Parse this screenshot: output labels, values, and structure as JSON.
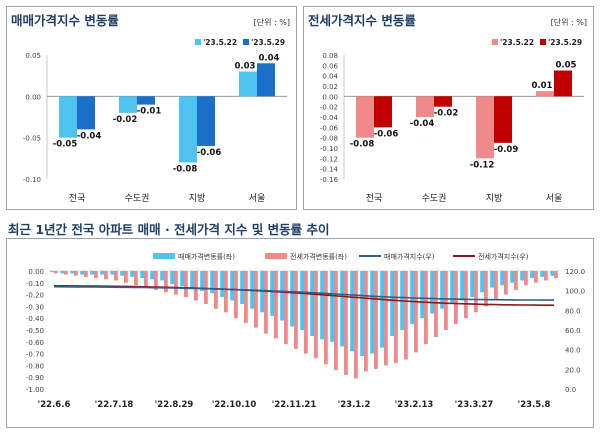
{
  "top_left": {
    "title": "매매가격지수 변동률",
    "unit": "[단위 : %]"
  },
  "top_right": {
    "title": "전세가격지수 변동률",
    "unit": "[단위 : %]"
  },
  "bottom": {
    "title": "최근 1년간 전국 아파트 매매 · 전세가격 지수 및 변동률 추이"
  },
  "colors": {
    "sale_prev": "#4fc3f0",
    "sale_curr": "#1a6fc9",
    "jeonse_prev": "#f08a8a",
    "jeonse_curr": "#c00000",
    "sale_index_line": "#2f5f8a",
    "jeonse_index_line": "#8b1a1a",
    "title": "#1f3f66"
  },
  "chart_data": [
    {
      "type": "bar",
      "name": "sale_rate",
      "categories": [
        "전국",
        "수도권",
        "지방",
        "서울"
      ],
      "series": [
        {
          "name": "'23.5.22",
          "values": [
            -0.05,
            -0.02,
            -0.08,
            0.03
          ],
          "labels": [
            "-0.05",
            "-0.02",
            "-0.08",
            "0.03"
          ]
        },
        {
          "name": "'23.5.29",
          "values": [
            -0.04,
            -0.01,
            -0.06,
            0.04
          ],
          "labels": [
            "-0.04",
            "-0.01",
            "-0.06",
            "0.04"
          ]
        }
      ],
      "ylim": [
        -0.1,
        0.05
      ],
      "yticks": [
        "0.05",
        "0.00",
        "-0.05",
        "-0.10"
      ],
      "ytick_values": [
        0.05,
        0.0,
        -0.05,
        -0.1
      ],
      "legend": "top-right"
    },
    {
      "type": "bar",
      "name": "jeonse_rate",
      "categories": [
        "전국",
        "수도권",
        "지방",
        "서울"
      ],
      "series": [
        {
          "name": "'23.5.22",
          "values": [
            -0.08,
            -0.04,
            -0.12,
            0.01
          ],
          "labels": [
            "-0.08",
            "-0.04",
            "-0.12",
            "0.01"
          ]
        },
        {
          "name": "'23.5.29",
          "values": [
            -0.06,
            -0.02,
            -0.09,
            0.05
          ],
          "labels": [
            "-0.06",
            "-0.02",
            "-0.09",
            "0.05"
          ]
        }
      ],
      "ylim": [
        -0.16,
        0.08
      ],
      "yticks": [
        "0.08",
        "0.06",
        "0.04",
        "0.02",
        "0.00",
        "-0.02",
        "-0.04",
        "-0.06",
        "-0.08",
        "-0.10",
        "-0.12",
        "-0.14",
        "-0.16"
      ],
      "ytick_values": [
        0.08,
        0.06,
        0.04,
        0.02,
        0.0,
        -0.02,
        -0.04,
        -0.06,
        -0.08,
        -0.1,
        -0.12,
        -0.14,
        -0.16
      ],
      "legend": "top-right"
    },
    {
      "type": "bar+line",
      "name": "yearly_trend",
      "legend_labels": [
        "매매가격변동률(좌)",
        "전세가격변동률(좌)",
        "매매가격지수(우)",
        "전세가격지수(우)"
      ],
      "xticks": [
        "'22.6.6",
        "'22.7.18",
        "'22.8.29",
        "'22.10.10",
        "'22.11.21",
        "'23.1.2",
        "'23.2.13",
        "'23.3.27",
        "'23.5.8"
      ],
      "xtick_weeks": [
        0,
        6,
        12,
        18,
        24,
        30,
        36,
        42,
        48
      ],
      "y_left_ticks": [
        "0.00",
        "-0.10",
        "-0.20",
        "-0.30",
        "-0.40",
        "-0.50",
        "-0.60",
        "-0.70",
        "-0.80",
        "-0.90",
        "-1.00"
      ],
      "y_left_values": [
        0.0,
        -0.1,
        -0.2,
        -0.3,
        -0.4,
        -0.5,
        -0.6,
        -0.7,
        -0.8,
        -0.9,
        -1.0
      ],
      "y_right_ticks": [
        "120.0",
        "100.0",
        "80.0",
        "60.0",
        "40.0",
        "20.0",
        "0.0"
      ],
      "y_right_values": [
        120,
        100,
        80,
        60,
        40,
        20,
        0
      ],
      "y_left_lim": [
        -1.0,
        0.0
      ],
      "y_right_lim": [
        0,
        120
      ],
      "sale_rate": [
        -0.01,
        -0.02,
        -0.02,
        -0.03,
        -0.03,
        -0.03,
        -0.03,
        -0.04,
        -0.05,
        -0.06,
        -0.07,
        -0.08,
        -0.11,
        -0.13,
        -0.15,
        -0.17,
        -0.19,
        -0.22,
        -0.25,
        -0.28,
        -0.32,
        -0.35,
        -0.38,
        -0.42,
        -0.47,
        -0.5,
        -0.55,
        -0.58,
        -0.6,
        -0.64,
        -0.68,
        -0.72,
        -0.7,
        -0.65,
        -0.55,
        -0.5,
        -0.45,
        -0.4,
        -0.36,
        -0.32,
        -0.28,
        -0.25,
        -0.22,
        -0.18,
        -0.14,
        -0.12,
        -0.1,
        -0.08,
        -0.06,
        -0.05,
        -0.04
      ],
      "jeonse_rate": [
        -0.02,
        -0.03,
        -0.04,
        -0.05,
        -0.06,
        -0.07,
        -0.08,
        -0.1,
        -0.12,
        -0.14,
        -0.16,
        -0.18,
        -0.2,
        -0.22,
        -0.25,
        -0.28,
        -0.32,
        -0.35,
        -0.4,
        -0.44,
        -0.48,
        -0.53,
        -0.57,
        -0.62,
        -0.66,
        -0.7,
        -0.74,
        -0.79,
        -0.84,
        -0.88,
        -0.91,
        -0.85,
        -0.83,
        -0.8,
        -0.78,
        -0.75,
        -0.69,
        -0.62,
        -0.56,
        -0.5,
        -0.45,
        -0.4,
        -0.35,
        -0.3,
        -0.25,
        -0.2,
        -0.16,
        -0.12,
        -0.1,
        -0.08,
        -0.06
      ],
      "sale_index": [
        104.0,
        103.9,
        103.8,
        103.7,
        103.7,
        103.6,
        103.5,
        103.4,
        103.3,
        103.2,
        103.0,
        102.9,
        102.7,
        102.5,
        102.3,
        102.1,
        101.8,
        101.5,
        101.2,
        100.9,
        100.5,
        100.1,
        99.7,
        99.3,
        98.8,
        98.3,
        97.8,
        97.3,
        96.7,
        96.1,
        95.5,
        94.9,
        94.3,
        93.8,
        93.3,
        92.9,
        92.5,
        92.2,
        91.9,
        91.6,
        91.4,
        91.2,
        91.0,
        90.9,
        90.8,
        90.7,
        90.6,
        90.5,
        90.5,
        90.4,
        90.4
      ],
      "jeonse_index": [
        105.0,
        104.9,
        104.8,
        104.7,
        104.6,
        104.5,
        104.4,
        104.3,
        104.1,
        103.9,
        103.7,
        103.5,
        103.2,
        102.9,
        102.6,
        102.3,
        101.9,
        101.5,
        101.1,
        100.6,
        100.1,
        99.6,
        99.0,
        98.4,
        97.8,
        97.1,
        96.4,
        95.7,
        94.9,
        94.1,
        93.3,
        92.5,
        91.7,
        90.9,
        90.2,
        89.5,
        88.9,
        88.3,
        87.8,
        87.3,
        86.9,
        86.6,
        86.3,
        86.0,
        85.8,
        85.6,
        85.5,
        85.4,
        85.3,
        85.2,
        85.2
      ]
    }
  ]
}
